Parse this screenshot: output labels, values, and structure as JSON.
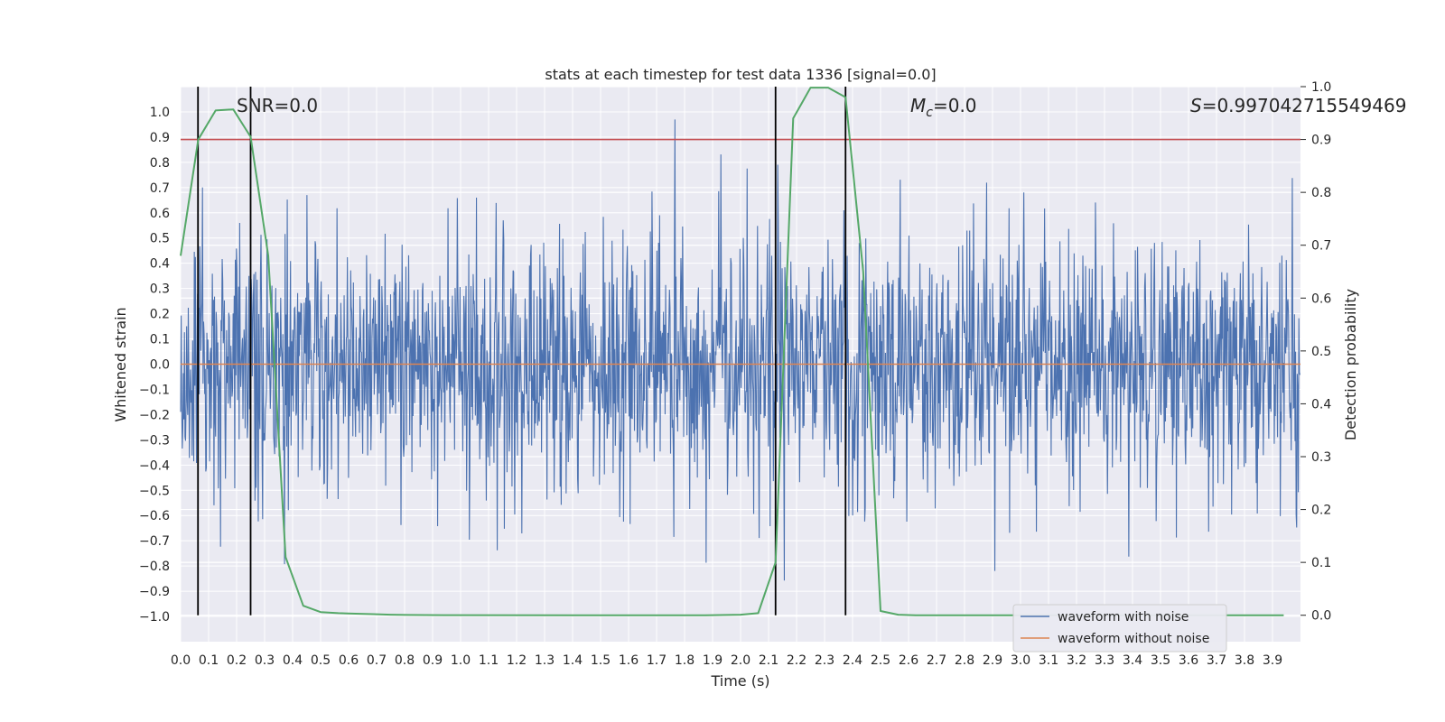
{
  "chart_data": {
    "type": "line",
    "title": "stats at each timestep for test data 1336 [signal=0.0]",
    "xlabel": "Time (s)",
    "ylabel": "Whitened strain",
    "y2label": "Detection probability",
    "xlim": [
      0.0,
      4.0
    ],
    "ylim": [
      -1.1,
      1.1
    ],
    "y2lim": [
      -0.05,
      1.0
    ],
    "grid": true,
    "x_ticks": [
      "0.0",
      "0.1",
      "0.2",
      "0.3",
      "0.4",
      "0.5",
      "0.6",
      "0.7",
      "0.8",
      "0.9",
      "1.0",
      "1.1",
      "1.2",
      "1.3",
      "1.4",
      "1.5",
      "1.6",
      "1.7",
      "1.8",
      "1.9",
      "2.0",
      "2.1",
      "2.2",
      "2.3",
      "2.4",
      "2.5",
      "2.6",
      "2.7",
      "2.8",
      "2.9",
      "3.0",
      "3.1",
      "3.2",
      "3.3",
      "3.4",
      "3.5",
      "3.6",
      "3.7",
      "3.8",
      "3.9"
    ],
    "y_ticks": [
      "1.0",
      "0.9",
      "0.8",
      "0.7",
      "0.6",
      "0.5",
      "0.4",
      "0.3",
      "0.2",
      "0.1",
      "0.0",
      "−0.1",
      "−0.2",
      "−0.3",
      "−0.4",
      "−0.5",
      "−0.6",
      "−0.7",
      "−0.8",
      "−0.9",
      "−1.0"
    ],
    "y2_ticks": [
      "1.0",
      "0.9",
      "0.8",
      "0.7",
      "0.6",
      "0.5",
      "0.4",
      "0.3",
      "0.2",
      "0.1",
      "0.0"
    ],
    "annotations": {
      "snr": "SNR=0.0",
      "mc_symbol": "M",
      "mc_sub": "c",
      "mc_value": "=0.0",
      "s_symbol": "S",
      "s_value": "=0.997042715549469"
    },
    "legend": {
      "position": "lower right",
      "entries": [
        "waveform with noise",
        "waveform without noise"
      ]
    },
    "colors": {
      "noise": "#4c72b0",
      "clean": "#dd8452",
      "probability": "#55a868",
      "threshold": "#c44e52",
      "markers": "#000000",
      "plot_bg": "#eaeaf2",
      "grid": "#ffffff"
    },
    "series": [
      {
        "name": "waveform with noise",
        "axis": "left",
        "description": "whitened noisy strain, approx. amplitude 0.4-0.9 around 0",
        "seed": 1336,
        "n_samples": 2048,
        "duration": 4.0
      },
      {
        "name": "waveform without noise",
        "axis": "left",
        "x": [
          0.0,
          4.0
        ],
        "y": [
          0.0,
          0.0
        ]
      },
      {
        "name": "detection probability",
        "axis": "right",
        "x": [
          0.0,
          0.063,
          0.125,
          0.188,
          0.25,
          0.313,
          0.375,
          0.438,
          0.5,
          0.563,
          0.625,
          0.688,
          0.75,
          0.813,
          0.875,
          0.938,
          1.0,
          1.5,
          1.875,
          2.0,
          2.063,
          2.125,
          2.188,
          2.25,
          2.313,
          2.375,
          2.438,
          2.5,
          2.563,
          2.625,
          3.5,
          3.94
        ],
        "y": [
          0.68,
          0.9,
          0.955,
          0.957,
          0.905,
          0.68,
          0.11,
          0.018,
          0.006,
          0.004,
          0.003,
          0.002,
          0.001,
          0.0005,
          0.0003,
          0.0002,
          0.0001,
          0.0,
          0.0,
          0.001,
          0.004,
          0.1,
          0.94,
          0.998,
          0.998,
          0.98,
          0.65,
          0.008,
          0.001,
          0.0,
          0.0,
          0.0
        ]
      }
    ],
    "threshold_y2": 0.9,
    "marker_lines_x": [
      0.062,
      0.25,
      2.125,
      2.375
    ]
  }
}
